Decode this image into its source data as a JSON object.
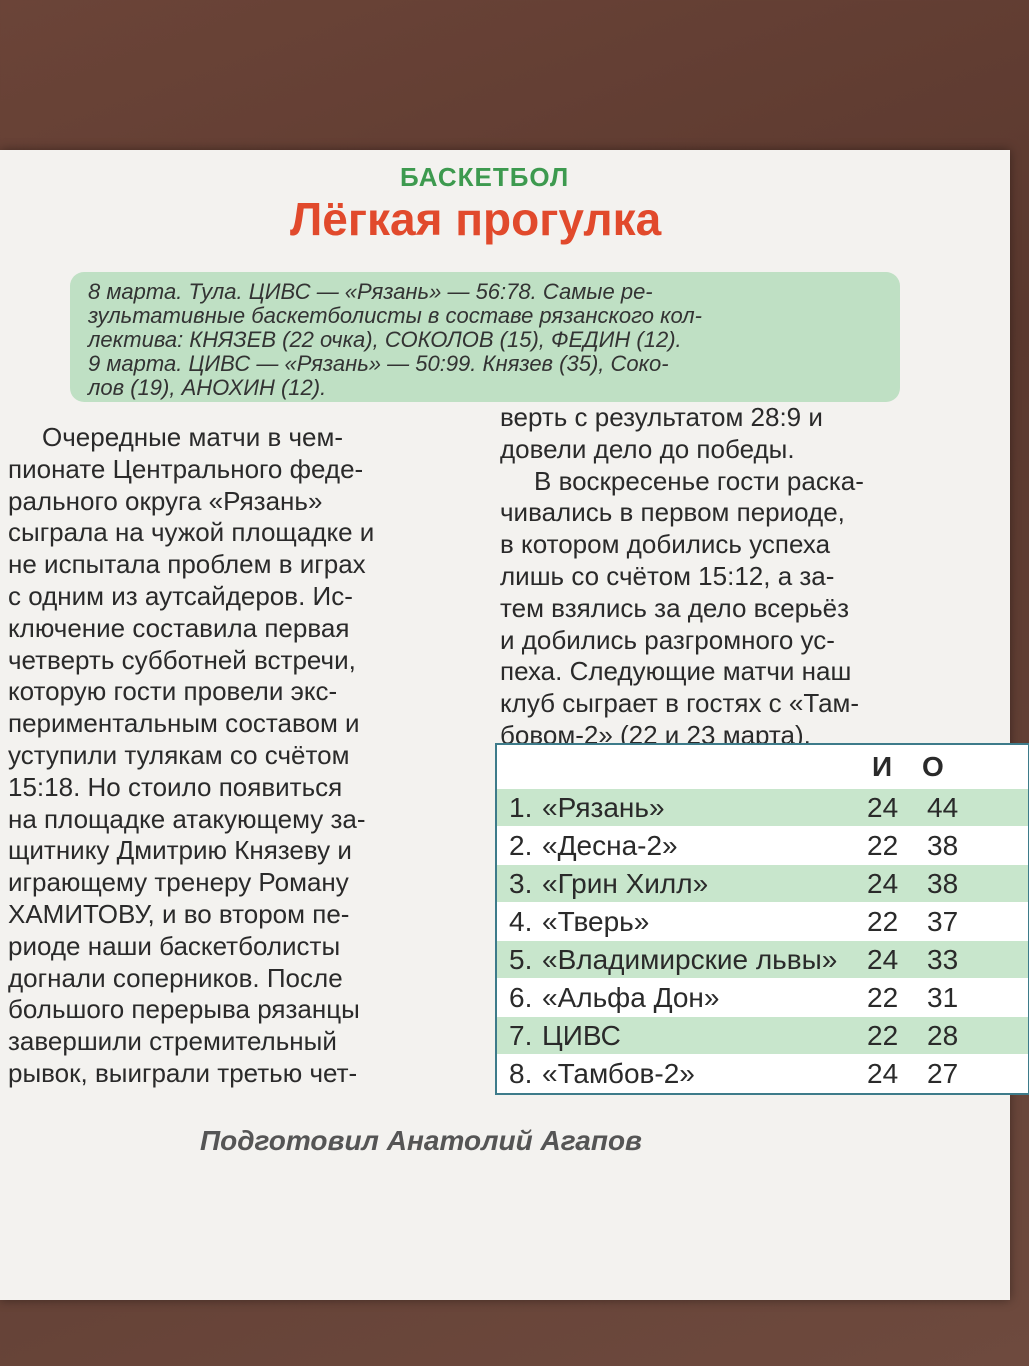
{
  "section": "БАСКЕТБОЛ",
  "title": "Лёгкая прогулка",
  "summary": {
    "lines": [
      "8 марта. Тула. ЦИВС — «Рязань» — 56:78. Самые ре-",
      "зультативные баскетболисты в составе рязанского кол-",
      "лектива: КНЯЗЕВ (22 очка), СОКОЛОВ (15), ФЕДИН (12).",
      "9 марта. ЦИВС — «Рязань» — 50:99. Князев (35), Соко-",
      "лов (19), АНОХИН (12)."
    ]
  },
  "article": {
    "left_column": [
      "Очередные матчи в чем-",
      "пионате Центрального феде-",
      "рального округа «Рязань»",
      "сыграла на чужой площадке и",
      "не испытала проблем в играх",
      "с одним из аутсайдеров. Ис-",
      "ключение составила первая",
      "четверть субботней встречи,",
      "которую гости провели экс-",
      "периментальным составом и",
      "уступили тулякам со счётом",
      "15:18. Но стоило появиться",
      "на площадке атакующему за-",
      "щитнику Дмитрию Князеву и",
      "играющему тренеру Роману",
      "ХАМИТОВУ, и во втором пе-",
      "риоде наши баскетболисты",
      "догнали соперников. После",
      "большого перерыва рязанцы",
      "завершили стремительный",
      "рывок, выиграли третью чет-"
    ],
    "right_column": [
      "верть с результатом 28:9 и",
      "довели дело до победы.",
      "В воскресенье гости раска-",
      "чивались в первом периоде,",
      "в котором добились успеха",
      "лишь со счётом 15:12, а за-",
      "тем взялись за дело всерьёз",
      "и добились разгромного ус-",
      "пеха. Следующие матчи наш",
      "клуб сыграет в гостях с «Там-",
      "бовом-2» (22 и 23 марта)."
    ]
  },
  "table": {
    "header": [
      "И",
      "О"
    ],
    "rows": [
      [
        "1.",
        "«Рязань»",
        24,
        44
      ],
      [
        "2.",
        "«Десна-2»",
        22,
        38
      ],
      [
        "3.",
        "«Грин Хилл»",
        24,
        38
      ],
      [
        "4.",
        "«Тверь»",
        22,
        37
      ],
      [
        "5.",
        "«Владимирские львы»",
        24,
        33
      ],
      [
        "6.",
        "«Альфа Дон»",
        22,
        31
      ],
      [
        "7.",
        "ЦИВС",
        22,
        28
      ],
      [
        "8.",
        "«Тамбов-2»",
        24,
        27
      ]
    ]
  },
  "byline": "Подготовил Анатолий Агапов"
}
